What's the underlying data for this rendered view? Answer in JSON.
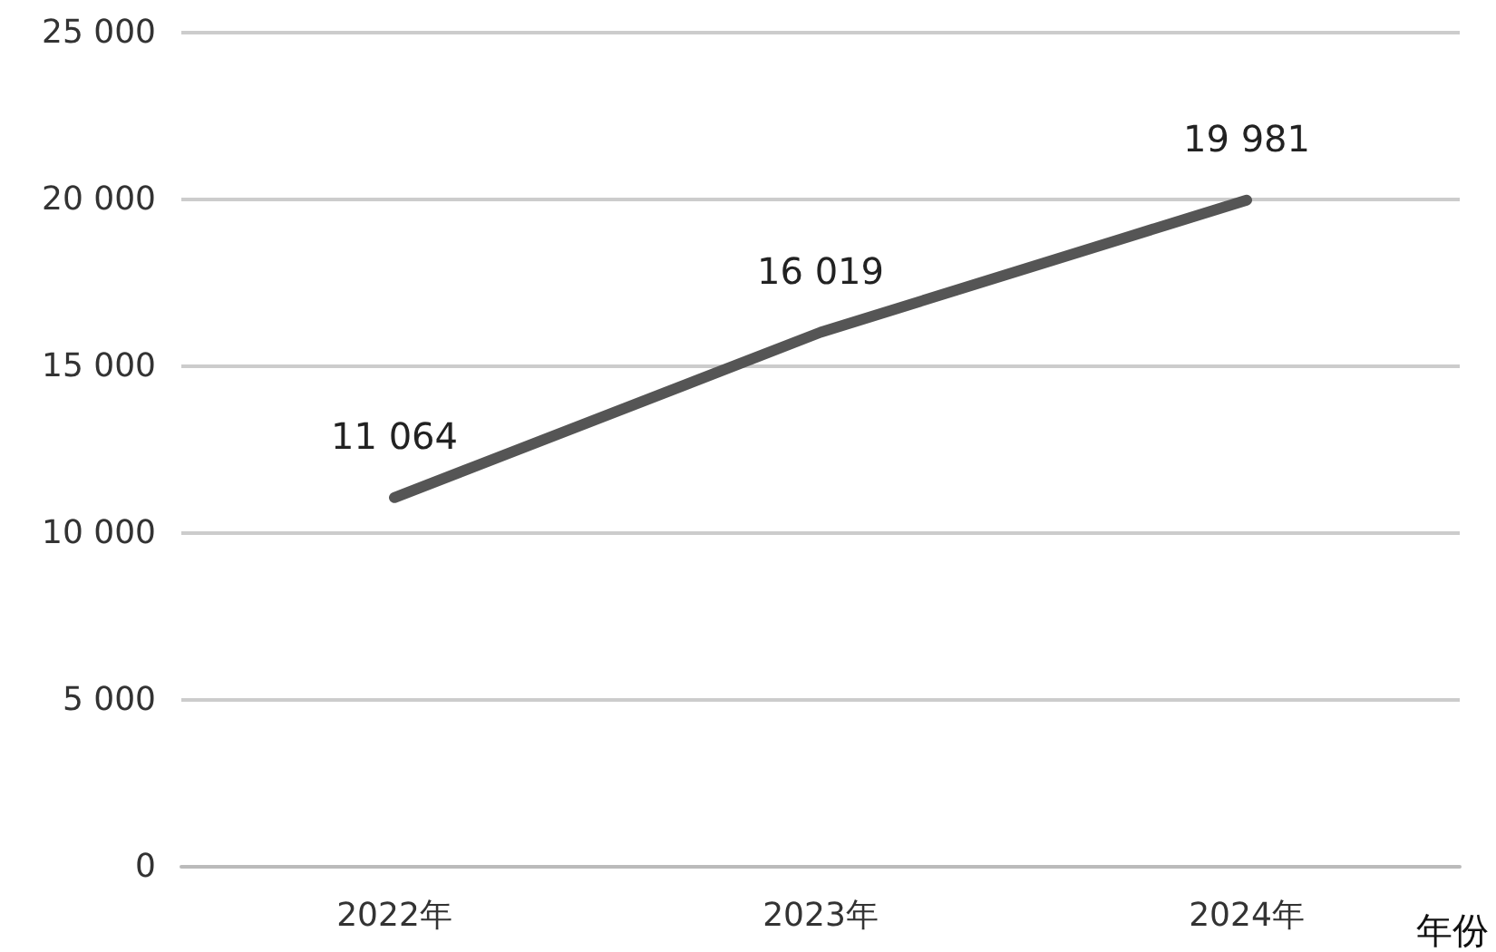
{
  "chart_data": {
    "type": "line",
    "categories": [
      "2022年",
      "2023年",
      "2024年"
    ],
    "series": [
      {
        "color": "#555555",
        "values": [
          11064,
          16019,
          19981
        ],
        "value_labels": [
          "11 064",
          "16 019",
          "19 981"
        ]
      }
    ],
    "xlabel": "年份",
    "ylim": [
      0,
      25000
    ],
    "yticks": [
      {
        "value": 0,
        "label": "0"
      },
      {
        "value": 5000,
        "label": "5 000"
      },
      {
        "value": 10000,
        "label": "10 000"
      },
      {
        "value": 15000,
        "label": "15 000"
      },
      {
        "value": 20000,
        "label": "20 000"
      },
      {
        "value": 25000,
        "label": "25 000"
      }
    ],
    "grid": "y",
    "marker": "none",
    "line_style": "solid"
  }
}
